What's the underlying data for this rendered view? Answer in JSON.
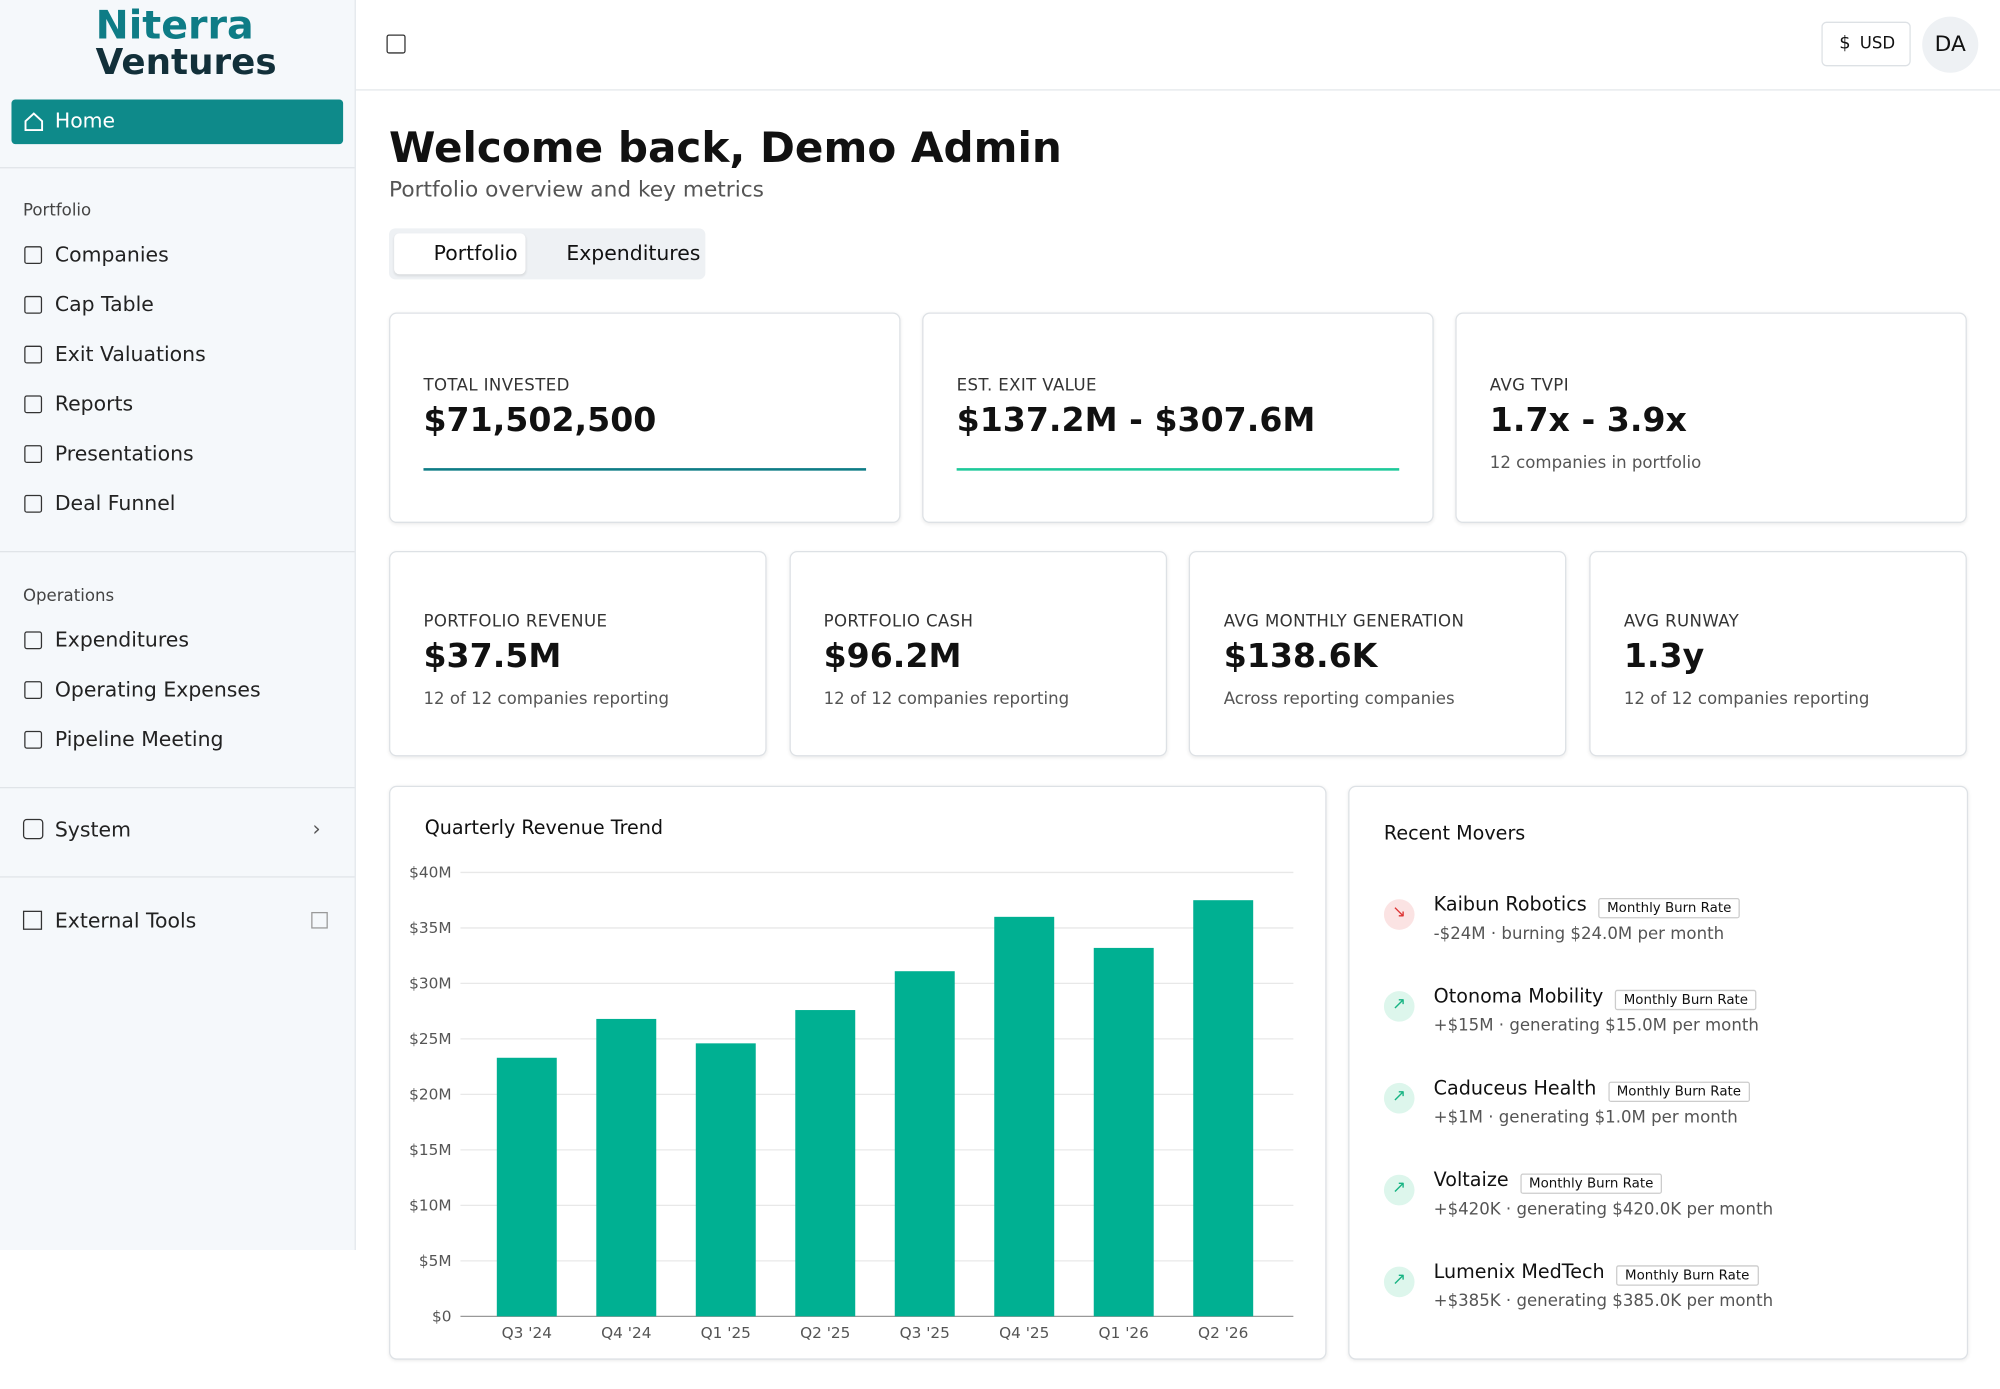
{
  "sidebar": {
    "logo": [
      "Niterra",
      "Ventures"
    ],
    "home": "Home",
    "sections": [
      {
        "title": "Portfolio",
        "items": [
          "Companies",
          "Cap Table",
          "Exit Valuations",
          "Reports",
          "Presentations",
          "Deal Funnel"
        ]
      },
      {
        "title": "Operations",
        "items": [
          "Expenditures",
          "Operating Expenses",
          "Pipeline Meeting"
        ]
      }
    ],
    "system": "System",
    "external": "External Tools"
  },
  "topbar": {
    "currency_symbol": "$",
    "currency": "USD",
    "avatar": "DA"
  },
  "header": {
    "title": "Welcome back, Demo Admin",
    "subtitle": "Portfolio overview and key metrics"
  },
  "tabs": [
    "Portfolio",
    "Expenditures"
  ],
  "kpis_top": [
    {
      "label": "TOTAL INVESTED",
      "value": "$71,502,500",
      "accent": "#0e7c86"
    },
    {
      "label": "EST. EXIT VALUE",
      "value": "$137.2M - $307.6M",
      "accent": "#1ec99a"
    },
    {
      "label": "AVG TVPI",
      "value": "1.7x - 3.9x",
      "note": "12 companies in portfolio"
    }
  ],
  "kpis": [
    {
      "label": "PORTFOLIO REVENUE",
      "value": "$37.5M",
      "note": "12 of 12 companies reporting"
    },
    {
      "label": "PORTFOLIO CASH",
      "value": "$96.2M",
      "note": "12 of 12 companies reporting"
    },
    {
      "label": "AVG MONTHLY GENERATION",
      "value": "$138.6K",
      "note": "Across reporting companies"
    },
    {
      "label": "AVG RUNWAY",
      "value": "1.3y",
      "note": "12 of 12 companies reporting"
    }
  ],
  "revenue_chart": {
    "type": "bar",
    "title": "Quarterly Revenue Trend",
    "color": "#00b092",
    "grid": true,
    "categories": [
      "Q3 '24",
      "Q4 '24",
      "Q1 '25",
      "Q2 '25",
      "Q3 '25",
      "Q4 '25",
      "Q1 '26",
      "Q2 '26"
    ],
    "values": [
      23.3,
      26.8,
      24.6,
      27.6,
      31.1,
      36.0,
      33.2,
      37.5
    ],
    "ylim": [
      0,
      40
    ],
    "yticks": [
      {
        "value": 0,
        "label": "$0"
      },
      {
        "value": 5,
        "label": "$5M"
      },
      {
        "value": 10,
        "label": "$10M"
      },
      {
        "value": 15,
        "label": "$15M"
      },
      {
        "value": 20,
        "label": "$20M"
      },
      {
        "value": 25,
        "label": "$25M"
      },
      {
        "value": 30,
        "label": "$30M"
      },
      {
        "value": 35,
        "label": "$35M"
      },
      {
        "value": 40,
        "label": "$40M"
      }
    ]
  },
  "movers": {
    "title": "Recent Movers",
    "items": [
      {
        "name": "Kaibun Robotics",
        "tag": "Monthly Burn Rate",
        "detail": "-$24M · burning $24.0M per month",
        "direction": "down"
      },
      {
        "name": "Otonoma Mobility",
        "tag": "Monthly Burn Rate",
        "detail": "+$15M · generating $15.0M per month",
        "direction": "up"
      },
      {
        "name": "Caduceus Health",
        "tag": "Monthly Burn Rate",
        "detail": "+$1M · generating $1.0M per month",
        "direction": "up"
      },
      {
        "name": "Voltaize",
        "tag": "Monthly Burn Rate",
        "detail": "+$420K · generating $420.0K per month",
        "direction": "up"
      },
      {
        "name": "Lumenix MedTech",
        "tag": "Monthly Burn Rate",
        "detail": "+$385K · generating $385.0K per month",
        "direction": "up"
      }
    ]
  }
}
